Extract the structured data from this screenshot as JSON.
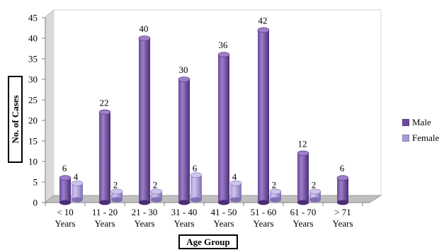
{
  "chart_data": {
    "type": "bar",
    "categories": [
      "< 10 Years",
      "11 - 20 Years",
      "21 - 30 Years",
      "31 - 40 Years",
      "41 - 50 Years",
      "51 - 60 Years",
      "61 - 70 Years",
      "> 71 Years"
    ],
    "category_lines": [
      [
        "< 10",
        "Years"
      ],
      [
        "11 - 20",
        "Years"
      ],
      [
        "21 - 30",
        "Years"
      ],
      [
        "31 - 40",
        "Years"
      ],
      [
        "41 - 50",
        "Years"
      ],
      [
        "51 - 60",
        "Years"
      ],
      [
        "61 - 70",
        "Years"
      ],
      [
        "> 71",
        "Years"
      ]
    ],
    "series": [
      {
        "name": "Male",
        "values": [
          6,
          22,
          40,
          30,
          36,
          42,
          12,
          6
        ],
        "color": "#6e48a0",
        "color_light": "#9c7fc7",
        "color_dark": "#4a2d77"
      },
      {
        "name": "Female",
        "values": [
          4,
          2,
          2,
          6,
          4,
          2,
          2,
          null
        ],
        "color": "#a99ad5",
        "color_light": "#cfc4ee",
        "color_dark": "#7f6fb3"
      }
    ],
    "xlabel": "Age Group",
    "ylabel": "No. of Cases",
    "ylim": [
      0,
      45
    ],
    "yticks": [
      0,
      5,
      10,
      15,
      20,
      25,
      30,
      35,
      40,
      45
    ],
    "grid": false,
    "legend_position": "right"
  }
}
